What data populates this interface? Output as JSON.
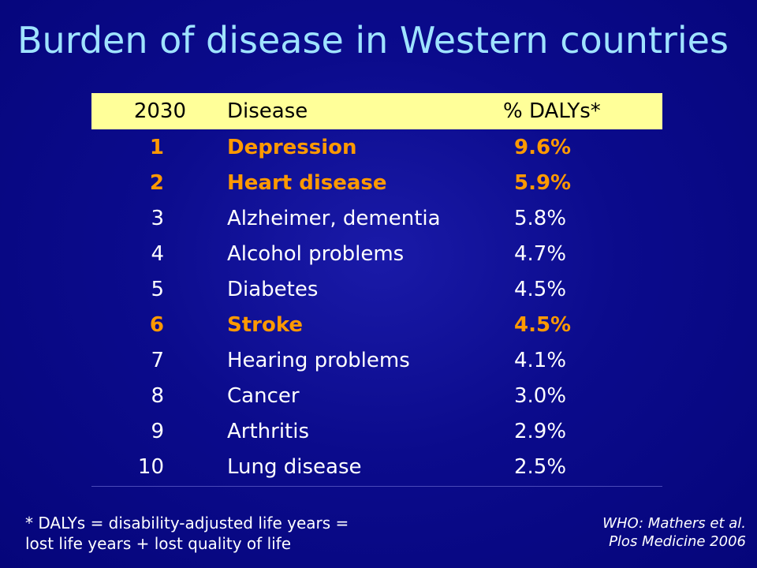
{
  "title": "Burden of disease in Western countries",
  "table": {
    "headers": {
      "rank": "2030",
      "disease": "Disease",
      "dalys": "% DALYs*"
    },
    "rows": [
      {
        "rank": "1",
        "disease": "Depression",
        "dalys": "9.6%",
        "highlight": true
      },
      {
        "rank": "2",
        "disease": "Heart disease",
        "dalys": "5.9%",
        "highlight": true
      },
      {
        "rank": "3",
        "disease": "Alzheimer, dementia",
        "dalys": "5.8%",
        "highlight": false
      },
      {
        "rank": "4",
        "disease": "Alcohol problems",
        "dalys": "4.7%",
        "highlight": false
      },
      {
        "rank": "5",
        "disease": "Diabetes",
        "dalys": "4.5%",
        "highlight": false
      },
      {
        "rank": "6",
        "disease": "Stroke",
        "dalys": "4.5%",
        "highlight": true
      },
      {
        "rank": "7",
        "disease": "Hearing problems",
        "dalys": "4.1%",
        "highlight": false
      },
      {
        "rank": "8",
        "disease": "Cancer",
        "dalys": "3.0%",
        "highlight": false
      },
      {
        "rank": "9",
        "disease": "Arthritis",
        "dalys": "2.9%",
        "highlight": false
      },
      {
        "rank": "10",
        "disease": "Lung disease",
        "dalys": "2.5%",
        "highlight": false
      }
    ]
  },
  "footnote": {
    "line1": "* DALYs = disability-adjusted life years =",
    "line2": "lost life years + lost quality of life"
  },
  "citation": {
    "line1": "WHO: Mathers et al.",
    "line2": "Plos Medicine 2006"
  },
  "colors": {
    "background": "#0b0b8c",
    "title": "#9fe3ff",
    "header_background": "#ffff99",
    "highlight": "#ff9900",
    "text": "#ffffff"
  }
}
